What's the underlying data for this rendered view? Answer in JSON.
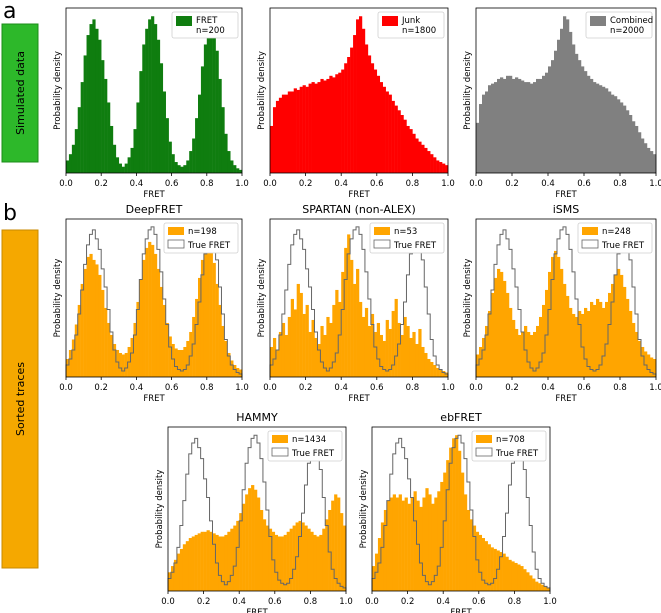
{
  "panel_labels": {
    "a": "a",
    "b": "b"
  },
  "side_labels": {
    "simulated": "Simulated data",
    "sorted": "Sorted traces"
  },
  "colors": {
    "simulated_bar": "#2db82a",
    "sorted_bar": "#f5a800",
    "fret": "#0f7d0f",
    "junk": "#ff0000",
    "combined": "#808080",
    "sorted_fill": "#ffa500",
    "true_line": "#666666"
  },
  "axis": {
    "xlabel": "FRET",
    "ylabel": "Probability density",
    "ticks": [
      "0.0",
      "0.2",
      "0.4",
      "0.6",
      "0.8",
      "1.0"
    ]
  },
  "true_fret_label": "True FRET",
  "chart_data": [
    {
      "type": "histogram",
      "id": "fret",
      "title": "",
      "legend": [
        "FRET",
        "n=200"
      ],
      "color": "#0f7d0f",
      "xlim": [
        0,
        1
      ],
      "bins": 60,
      "values": [
        0.08,
        0.12,
        0.18,
        0.28,
        0.42,
        0.58,
        0.75,
        0.88,
        0.95,
        0.98,
        0.92,
        0.85,
        0.72,
        0.6,
        0.45,
        0.3,
        0.18,
        0.1,
        0.06,
        0.04,
        0.06,
        0.1,
        0.16,
        0.28,
        0.45,
        0.65,
        0.82,
        0.92,
        0.98,
        1.0,
        0.95,
        0.85,
        0.7,
        0.52,
        0.35,
        0.2,
        0.12,
        0.07,
        0.05,
        0.04,
        0.05,
        0.08,
        0.14,
        0.22,
        0.35,
        0.5,
        0.68,
        0.82,
        0.92,
        0.95,
        0.9,
        0.78,
        0.6,
        0.42,
        0.25,
        0.14,
        0.08,
        0.05,
        0.03,
        0.02
      ]
    },
    {
      "type": "histogram",
      "id": "junk",
      "title": "",
      "legend": [
        "Junk",
        "n=1800"
      ],
      "color": "#ff0000",
      "xlim": [
        0,
        1
      ],
      "bins": 60,
      "values": [
        0.3,
        0.42,
        0.46,
        0.48,
        0.5,
        0.5,
        0.52,
        0.52,
        0.54,
        0.53,
        0.55,
        0.56,
        0.55,
        0.57,
        0.58,
        0.57,
        0.58,
        0.6,
        0.59,
        0.6,
        0.62,
        0.61,
        0.63,
        0.64,
        0.66,
        0.7,
        0.74,
        0.8,
        0.88,
        0.98,
        1.0,
        0.92,
        0.82,
        0.75,
        0.7,
        0.66,
        0.62,
        0.58,
        0.55,
        0.52,
        0.5,
        0.46,
        0.43,
        0.4,
        0.37,
        0.34,
        0.3,
        0.28,
        0.25,
        0.22,
        0.2,
        0.18,
        0.16,
        0.14,
        0.12,
        0.1,
        0.08,
        0.07,
        0.06,
        0.05
      ]
    },
    {
      "type": "histogram",
      "id": "combined",
      "title": "",
      "legend": [
        "Combined",
        "n=2000"
      ],
      "color": "#808080",
      "xlim": [
        0,
        1
      ],
      "bins": 60,
      "values": [
        0.32,
        0.44,
        0.5,
        0.52,
        0.56,
        0.57,
        0.58,
        0.6,
        0.61,
        0.6,
        0.62,
        0.62,
        0.6,
        0.61,
        0.6,
        0.59,
        0.58,
        0.58,
        0.57,
        0.58,
        0.6,
        0.6,
        0.62,
        0.64,
        0.68,
        0.72,
        0.78,
        0.85,
        0.92,
        1.0,
        0.98,
        0.9,
        0.82,
        0.76,
        0.72,
        0.68,
        0.65,
        0.62,
        0.6,
        0.58,
        0.57,
        0.56,
        0.55,
        0.54,
        0.52,
        0.5,
        0.49,
        0.47,
        0.45,
        0.43,
        0.4,
        0.37,
        0.33,
        0.3,
        0.26,
        0.22,
        0.19,
        0.16,
        0.14,
        0.12
      ]
    },
    {
      "type": "histogram",
      "id": "deepfret",
      "title": "DeepFRET",
      "legend": [
        "n=198",
        "True FRET"
      ],
      "color": "#ffa500",
      "xlim": [
        0,
        1
      ],
      "bins": 60,
      "values": [
        0.12,
        0.18,
        0.25,
        0.35,
        0.48,
        0.62,
        0.72,
        0.8,
        0.82,
        0.78,
        0.75,
        0.68,
        0.58,
        0.46,
        0.36,
        0.28,
        0.22,
        0.18,
        0.16,
        0.15,
        0.16,
        0.2,
        0.26,
        0.36,
        0.5,
        0.65,
        0.78,
        0.86,
        0.9,
        0.88,
        0.82,
        0.72,
        0.6,
        0.48,
        0.36,
        0.27,
        0.22,
        0.19,
        0.18,
        0.18,
        0.2,
        0.24,
        0.3,
        0.4,
        0.52,
        0.66,
        0.78,
        0.86,
        0.88,
        0.84,
        0.76,
        0.62,
        0.48,
        0.34,
        0.24,
        0.16,
        0.11,
        0.08,
        0.06,
        0.05
      ],
      "true_values": [
        0.08,
        0.12,
        0.18,
        0.28,
        0.42,
        0.58,
        0.75,
        0.88,
        0.95,
        0.98,
        0.92,
        0.85,
        0.72,
        0.6,
        0.45,
        0.3,
        0.18,
        0.1,
        0.06,
        0.04,
        0.06,
        0.1,
        0.16,
        0.28,
        0.45,
        0.65,
        0.82,
        0.92,
        0.98,
        1.0,
        0.95,
        0.85,
        0.7,
        0.52,
        0.35,
        0.2,
        0.12,
        0.07,
        0.05,
        0.04,
        0.05,
        0.08,
        0.14,
        0.22,
        0.35,
        0.5,
        0.68,
        0.82,
        0.92,
        0.95,
        0.9,
        0.78,
        0.6,
        0.42,
        0.25,
        0.14,
        0.08,
        0.05,
        0.03,
        0.02
      ]
    },
    {
      "type": "histogram",
      "id": "spartan",
      "title": "SPARTAN (non-ALEX)",
      "legend": [
        "n=53",
        "True FRET"
      ],
      "color": "#ffa500",
      "xlim": [
        0,
        1
      ],
      "bins": 60,
      "values": [
        0.2,
        0.26,
        0.18,
        0.3,
        0.36,
        0.28,
        0.4,
        0.52,
        0.45,
        0.62,
        0.56,
        0.42,
        0.48,
        0.3,
        0.38,
        0.26,
        0.22,
        0.34,
        0.28,
        0.4,
        0.36,
        0.48,
        0.58,
        0.5,
        0.7,
        0.86,
        0.95,
        0.78,
        0.62,
        0.72,
        0.5,
        0.4,
        0.46,
        0.34,
        0.42,
        0.3,
        0.36,
        0.28,
        0.24,
        0.38,
        0.32,
        0.44,
        0.52,
        0.36,
        0.28,
        0.4,
        0.34,
        0.26,
        0.3,
        0.22,
        0.32,
        0.2,
        0.16,
        0.12,
        0.1,
        0.08,
        0.06,
        0.05,
        0.04,
        0.03
      ],
      "true_values": [
        0.08,
        0.12,
        0.18,
        0.28,
        0.42,
        0.58,
        0.75,
        0.88,
        0.95,
        0.98,
        0.92,
        0.85,
        0.72,
        0.6,
        0.45,
        0.3,
        0.18,
        0.1,
        0.06,
        0.04,
        0.06,
        0.1,
        0.16,
        0.28,
        0.45,
        0.65,
        0.82,
        0.92,
        0.98,
        1.0,
        0.95,
        0.85,
        0.7,
        0.52,
        0.35,
        0.2,
        0.12,
        0.07,
        0.05,
        0.04,
        0.05,
        0.08,
        0.14,
        0.22,
        0.35,
        0.5,
        0.68,
        0.82,
        0.92,
        0.95,
        0.9,
        0.78,
        0.6,
        0.42,
        0.25,
        0.14,
        0.08,
        0.05,
        0.03,
        0.02
      ]
    },
    {
      "type": "histogram",
      "id": "isms",
      "title": "iSMS",
      "legend": [
        "n=248",
        "True FRET"
      ],
      "color": "#ffa500",
      "xlim": [
        0,
        1
      ],
      "bins": 60,
      "values": [
        0.15,
        0.2,
        0.26,
        0.34,
        0.44,
        0.56,
        0.66,
        0.72,
        0.7,
        0.64,
        0.56,
        0.46,
        0.38,
        0.32,
        0.28,
        0.3,
        0.34,
        0.3,
        0.28,
        0.3,
        0.34,
        0.4,
        0.48,
        0.58,
        0.7,
        0.8,
        0.84,
        0.8,
        0.72,
        0.62,
        0.54,
        0.46,
        0.42,
        0.4,
        0.44,
        0.42,
        0.46,
        0.44,
        0.5,
        0.48,
        0.52,
        0.5,
        0.46,
        0.5,
        0.56,
        0.62,
        0.68,
        0.72,
        0.68,
        0.6,
        0.52,
        0.44,
        0.36,
        0.3,
        0.24,
        0.2,
        0.17,
        0.15,
        0.13,
        0.12
      ],
      "true_values": [
        0.08,
        0.12,
        0.18,
        0.28,
        0.42,
        0.58,
        0.75,
        0.88,
        0.95,
        0.98,
        0.92,
        0.85,
        0.72,
        0.6,
        0.45,
        0.3,
        0.18,
        0.1,
        0.06,
        0.04,
        0.06,
        0.1,
        0.16,
        0.28,
        0.45,
        0.65,
        0.82,
        0.92,
        0.98,
        1.0,
        0.95,
        0.85,
        0.7,
        0.52,
        0.35,
        0.2,
        0.12,
        0.07,
        0.05,
        0.04,
        0.05,
        0.08,
        0.14,
        0.22,
        0.35,
        0.5,
        0.68,
        0.82,
        0.92,
        0.95,
        0.9,
        0.78,
        0.6,
        0.42,
        0.25,
        0.14,
        0.08,
        0.05,
        0.03,
        0.02
      ]
    },
    {
      "type": "histogram",
      "id": "hammy",
      "title": "HAMMY",
      "legend": [
        "n=1434",
        "True FRET"
      ],
      "color": "#ffa500",
      "xlim": [
        0,
        1
      ],
      "bins": 60,
      "values": [
        0.12,
        0.16,
        0.2,
        0.24,
        0.27,
        0.3,
        0.32,
        0.34,
        0.35,
        0.36,
        0.37,
        0.38,
        0.38,
        0.39,
        0.38,
        0.37,
        0.36,
        0.35,
        0.35,
        0.36,
        0.38,
        0.4,
        0.42,
        0.45,
        0.5,
        0.56,
        0.62,
        0.66,
        0.68,
        0.65,
        0.6,
        0.52,
        0.46,
        0.42,
        0.4,
        0.38,
        0.36,
        0.35,
        0.35,
        0.36,
        0.38,
        0.4,
        0.42,
        0.44,
        0.45,
        0.44,
        0.42,
        0.4,
        0.38,
        0.36,
        0.35,
        0.36,
        0.4,
        0.46,
        0.52,
        0.58,
        0.62,
        0.6,
        0.5,
        0.42
      ],
      "true_values": [
        0.08,
        0.12,
        0.18,
        0.28,
        0.42,
        0.58,
        0.75,
        0.88,
        0.95,
        0.98,
        0.92,
        0.85,
        0.72,
        0.6,
        0.45,
        0.3,
        0.18,
        0.1,
        0.06,
        0.04,
        0.06,
        0.1,
        0.16,
        0.28,
        0.45,
        0.65,
        0.82,
        0.92,
        0.98,
        1.0,
        0.95,
        0.85,
        0.7,
        0.52,
        0.35,
        0.2,
        0.12,
        0.07,
        0.05,
        0.04,
        0.05,
        0.08,
        0.14,
        0.22,
        0.35,
        0.5,
        0.68,
        0.82,
        0.92,
        0.95,
        0.9,
        0.78,
        0.6,
        0.42,
        0.25,
        0.14,
        0.08,
        0.05,
        0.03,
        0.02
      ]
    },
    {
      "type": "histogram",
      "id": "ebfret",
      "title": "ebFRET",
      "legend": [
        "n=708",
        "True FRET"
      ],
      "color": "#ffa500",
      "xlim": [
        0,
        1
      ],
      "bins": 60,
      "values": [
        0.16,
        0.24,
        0.34,
        0.44,
        0.52,
        0.58,
        0.6,
        0.62,
        0.6,
        0.62,
        0.58,
        0.6,
        0.56,
        0.6,
        0.64,
        0.58,
        0.54,
        0.6,
        0.66,
        0.62,
        0.56,
        0.6,
        0.64,
        0.7,
        0.76,
        0.84,
        0.92,
        0.98,
        1.0,
        0.9,
        0.76,
        0.62,
        0.52,
        0.46,
        0.42,
        0.38,
        0.36,
        0.34,
        0.32,
        0.3,
        0.28,
        0.27,
        0.26,
        0.25,
        0.24,
        0.22,
        0.2,
        0.19,
        0.18,
        0.17,
        0.16,
        0.14,
        0.12,
        0.1,
        0.08,
        0.06,
        0.05,
        0.04,
        0.03,
        0.02
      ],
      "true_values": [
        0.08,
        0.12,
        0.18,
        0.28,
        0.42,
        0.58,
        0.75,
        0.88,
        0.95,
        0.98,
        0.92,
        0.85,
        0.72,
        0.6,
        0.45,
        0.3,
        0.18,
        0.1,
        0.06,
        0.04,
        0.06,
        0.1,
        0.16,
        0.28,
        0.45,
        0.65,
        0.82,
        0.92,
        0.98,
        1.0,
        0.95,
        0.85,
        0.7,
        0.52,
        0.35,
        0.2,
        0.12,
        0.07,
        0.05,
        0.04,
        0.05,
        0.08,
        0.14,
        0.22,
        0.35,
        0.5,
        0.68,
        0.82,
        0.92,
        0.95,
        0.9,
        0.78,
        0.6,
        0.42,
        0.25,
        0.14,
        0.08,
        0.05,
        0.03,
        0.02
      ]
    }
  ]
}
